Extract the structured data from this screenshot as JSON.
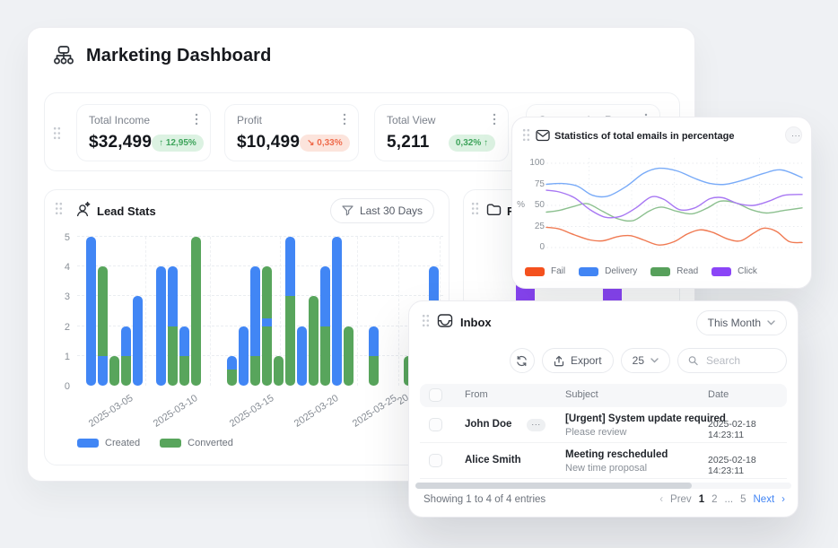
{
  "header": {
    "title": "Marketing Dashboard"
  },
  "stats": {
    "cards": [
      {
        "label": "Total Income",
        "value": "$32,499",
        "badge": "↑ 12,95%",
        "badge_type": "positive"
      },
      {
        "label": "Profit",
        "value": "$10,499",
        "badge": "↘ 0,33%",
        "badge_type": "negative"
      },
      {
        "label": "Total View",
        "value": "5,211",
        "badge": "0,32% ↑",
        "badge_type": "positive"
      },
      {
        "label": "Conversation Rate"
      }
    ]
  },
  "lead_stats": {
    "title": "Lead Stats",
    "filter_label": "Last 30 Days"
  },
  "folder_card": {
    "title": "Fo",
    "bar_color": "#8b45f7",
    "visible_bars": [
      {
        "x": 544,
        "w": 21
      },
      {
        "x": 641,
        "w": 21
      }
    ]
  },
  "email_stats": {
    "title": "Statistics of total emails in percentage",
    "menu_label": "···",
    "ylabel": "%"
  },
  "inbox": {
    "title": "Inbox",
    "period_label": "This Month",
    "export_label": "Export",
    "page_size": "25",
    "search_placeholder": "Search",
    "table": {
      "headers": [
        "From",
        "Subject",
        "Date"
      ],
      "rows": [
        {
          "from": "John Doe",
          "actions_label": "···",
          "subject": "[Urgent] System update required",
          "preview": "Please review",
          "date": "2025-02-18 14:23:11"
        },
        {
          "from": "Alice Smith",
          "subject": "Meeting rescheduled",
          "preview": "New time proposal",
          "date": "2025-02-18 14:23:11"
        }
      ]
    },
    "footer": {
      "summary": "Showing 1 to 4 of 4 entries",
      "pagination": {
        "items": [
          "‹",
          "Prev",
          "1",
          "2",
          "...",
          "5",
          "Next",
          "›"
        ],
        "active": "1"
      }
    }
  },
  "chart_data": [
    {
      "id": "lead-stats-bars",
      "type": "stacked_bar",
      "title": "Lead Stats",
      "ymax": 5,
      "y_ticks": [
        0,
        1,
        2,
        3,
        4,
        5
      ],
      "series_colors": {
        "created": "#4186f5",
        "converted": "#58a55c"
      },
      "legend": [
        {
          "key": "created",
          "label": "Created"
        },
        {
          "key": "converted",
          "label": "Converted"
        }
      ],
      "x_ticks": [
        {
          "label": "2025-03-05",
          "cx": 78
        },
        {
          "label": "2025-03-10",
          "cx": 150
        },
        {
          "label": "2025-03-15",
          "cx": 235
        },
        {
          "label": "2025-03-20",
          "cx": 307
        },
        {
          "label": "2025-03-25",
          "cx": 372
        },
        {
          "label": "20",
          "left": 391,
          "top": 14
        }
      ],
      "bars": [
        {
          "x": 46,
          "stack": [
            [
              "created",
              5
            ]
          ]
        },
        {
          "x": 59,
          "stack": [
            [
              "created",
              1
            ],
            [
              "converted",
              3
            ]
          ]
        },
        {
          "x": 72,
          "stack": [
            [
              "converted",
              1
            ]
          ]
        },
        {
          "x": 85,
          "stack": [
            [
              "converted",
              1
            ],
            [
              "created",
              1
            ]
          ]
        },
        {
          "x": 98,
          "stack": [
            [
              "created",
              3
            ]
          ]
        },
        {
          "x": 124,
          "stack": [
            [
              "created",
              4
            ]
          ]
        },
        {
          "x": 137,
          "stack": [
            [
              "converted",
              2
            ],
            [
              "created",
              2
            ]
          ]
        },
        {
          "x": 150,
          "stack": [
            [
              "converted",
              1
            ],
            [
              "created",
              1
            ]
          ]
        },
        {
          "x": 163,
          "stack": [
            [
              "converted",
              5
            ]
          ]
        },
        {
          "x": 203,
          "stack": [
            [
              "converted",
              0.55
            ],
            [
              "created",
              0.45
            ]
          ]
        },
        {
          "x": 216,
          "stack": [
            [
              "created",
              2
            ]
          ]
        },
        {
          "x": 229,
          "stack": [
            [
              "converted",
              1
            ],
            [
              "created",
              3
            ]
          ]
        },
        {
          "x": 242,
          "stack": [
            [
              "converted",
              2
            ],
            [
              "created",
              0.25
            ],
            [
              "converted",
              1.75
            ]
          ]
        },
        {
          "x": 255,
          "stack": [
            [
              "converted",
              1
            ]
          ]
        },
        {
          "x": 268,
          "stack": [
            [
              "converted",
              3
            ],
            [
              "created",
              2
            ]
          ]
        },
        {
          "x": 281,
          "stack": [
            [
              "created",
              2
            ]
          ]
        },
        {
          "x": 294,
          "stack": [
            [
              "converted",
              3
            ]
          ]
        },
        {
          "x": 307,
          "stack": [
            [
              "converted",
              2
            ],
            [
              "created",
              2
            ]
          ]
        },
        {
          "x": 320,
          "stack": [
            [
              "created",
              5
            ]
          ]
        },
        {
          "x": 333,
          "stack": [
            [
              "converted",
              2
            ]
          ]
        },
        {
          "x": 361,
          "stack": [
            [
              "converted",
              1
            ],
            [
              "created",
              1
            ]
          ]
        },
        {
          "x": 400,
          "stack": [
            [
              "converted",
              1
            ]
          ]
        },
        {
          "x": 428,
          "stack": [
            [
              "created",
              4
            ]
          ]
        }
      ]
    },
    {
      "id": "email-stats-lines",
      "type": "line",
      "title": "Statistics of total emails in percentage",
      "ylabel": "%",
      "y_ticks": [
        0,
        25,
        50,
        75,
        100
      ],
      "ylim": [
        0,
        100
      ],
      "series": [
        {
          "name": "Fail",
          "color": "#f4511e",
          "line": "#f07a52",
          "points": [
            [
              0,
              24
            ],
            [
              5,
              22
            ],
            [
              11,
              15
            ],
            [
              17,
              9
            ],
            [
              22,
              8
            ],
            [
              28,
              13
            ],
            [
              33,
              14
            ],
            [
              38,
              9
            ],
            [
              44,
              3
            ],
            [
              50,
              7
            ],
            [
              55,
              16
            ],
            [
              60,
              21
            ],
            [
              65,
              18
            ],
            [
              71,
              10
            ],
            [
              76,
              8
            ],
            [
              81,
              17
            ],
            [
              85,
              23
            ],
            [
              90,
              19
            ],
            [
              95,
              7
            ],
            [
              100,
              6
            ]
          ]
        },
        {
          "name": "Delivery",
          "color": "#4285f4",
          "line": "#79abf8",
          "points": [
            [
              0,
              75
            ],
            [
              6,
              76
            ],
            [
              12,
              73
            ],
            [
              18,
              62
            ],
            [
              24,
              61
            ],
            [
              31,
              72
            ],
            [
              38,
              88
            ],
            [
              44,
              94
            ],
            [
              51,
              91
            ],
            [
              58,
              82
            ],
            [
              64,
              76
            ],
            [
              70,
              75
            ],
            [
              77,
              80
            ],
            [
              85,
              88
            ],
            [
              92,
              92
            ],
            [
              100,
              83
            ]
          ]
        },
        {
          "name": "Read",
          "color": "#57a05b",
          "line": "#8cc08f",
          "points": [
            [
              0,
              42
            ],
            [
              5,
              44
            ],
            [
              11,
              49
            ],
            [
              16,
              52
            ],
            [
              22,
              43
            ],
            [
              28,
              34
            ],
            [
              34,
              32
            ],
            [
              40,
              43
            ],
            [
              45,
              48
            ],
            [
              51,
              43
            ],
            [
              57,
              40
            ],
            [
              63,
              47
            ],
            [
              68,
              55
            ],
            [
              74,
              53
            ],
            [
              80,
              45
            ],
            [
              86,
              41
            ],
            [
              93,
              44
            ],
            [
              100,
              47
            ]
          ]
        },
        {
          "name": "Click",
          "color": "#8b45f7",
          "line": "#a878f3",
          "points": [
            [
              0,
              68
            ],
            [
              5,
              66
            ],
            [
              11,
              59
            ],
            [
              17,
              45
            ],
            [
              23,
              36
            ],
            [
              29,
              37
            ],
            [
              35,
              47
            ],
            [
              41,
              60
            ],
            [
              46,
              57
            ],
            [
              52,
              45
            ],
            [
              58,
              47
            ],
            [
              64,
              58
            ],
            [
              69,
              59
            ],
            [
              75,
              52
            ],
            [
              81,
              50
            ],
            [
              87,
              55
            ],
            [
              93,
              62
            ],
            [
              100,
              63
            ]
          ]
        }
      ]
    }
  ]
}
